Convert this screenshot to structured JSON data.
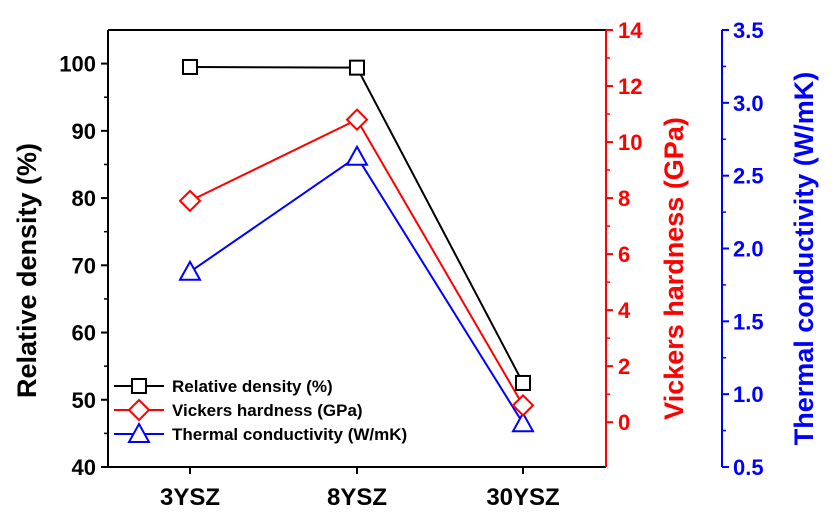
{
  "chart_data": {
    "type": "line",
    "categories": [
      "3YSZ",
      "8YSZ",
      "30YSZ"
    ],
    "series": [
      {
        "name": "Relative density (%)",
        "axis": "left",
        "color": "#000000",
        "marker": "square",
        "values": [
          99.5,
          99.4,
          52.5
        ]
      },
      {
        "name": "Vickers hardness (GPa)",
        "axis": "right1",
        "color": "#ff0000",
        "marker": "diamond",
        "values": [
          7.9,
          10.8,
          0.6
        ]
      },
      {
        "name": "Thermal conductivity (W/mK)",
        "axis": "right2",
        "color": "#0000ff",
        "marker": "triangle",
        "values": [
          1.84,
          2.63,
          0.8
        ]
      }
    ],
    "axes": {
      "left": {
        "label": "Relative density (%)",
        "ylim": [
          40,
          105
        ],
        "ticks": [
          "40",
          "50",
          "60",
          "70",
          "80",
          "90",
          "100"
        ],
        "color": "#000000"
      },
      "right1": {
        "label": "Vickers hardness (GPa)",
        "ylim": [
          -1.6,
          14
        ],
        "ticks": [
          "0",
          "2",
          "4",
          "6",
          "8",
          "10",
          "12",
          "14"
        ],
        "color": "#ff0000"
      },
      "right2": {
        "label": "Thermal conductivity (W/mK)",
        "ylim": [
          0.5,
          3.5
        ],
        "ticks": [
          "0.5",
          "1.0",
          "1.5",
          "2.0",
          "2.5",
          "3.0",
          "3.5"
        ],
        "color": "#0000ff"
      }
    },
    "legend_position": "bottom-left",
    "grid": false
  }
}
